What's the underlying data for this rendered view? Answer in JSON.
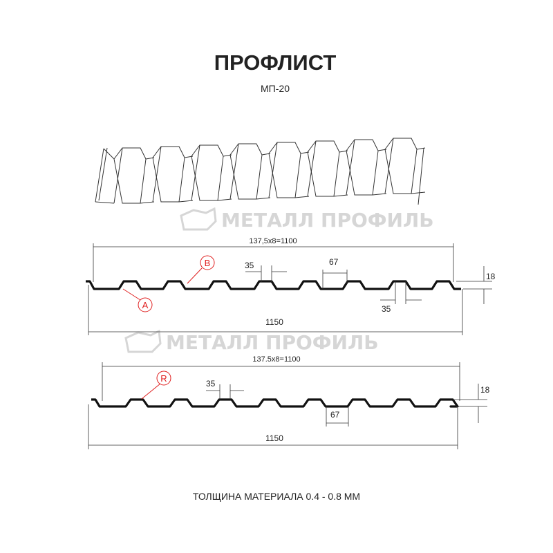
{
  "title": "ПРОФЛИСТ",
  "subtitle": "МП-20",
  "watermark": "МЕТАЛЛ ПРОФИЛЬ",
  "profile1": {
    "pitch_label": "137,5x8=1100",
    "width_label": "1150",
    "height_label": "18",
    "top_width_label": "35",
    "bottom_width_label": "67",
    "bottom_rib_label": "35",
    "marker_a": "A",
    "marker_b": "B"
  },
  "profile2": {
    "pitch_label": "137.5x8=1100",
    "width_label": "1150",
    "height_label": "18",
    "top_width_label": "35",
    "bottom_width_label": "67",
    "marker_r": "R"
  },
  "footer": "ТОЛЩИНА МАТЕРИАЛА 0.4 - 0.8 ММ",
  "colors": {
    "marker": "#e02020",
    "profile": "#111111",
    "watermark": "#d6d6d6"
  }
}
